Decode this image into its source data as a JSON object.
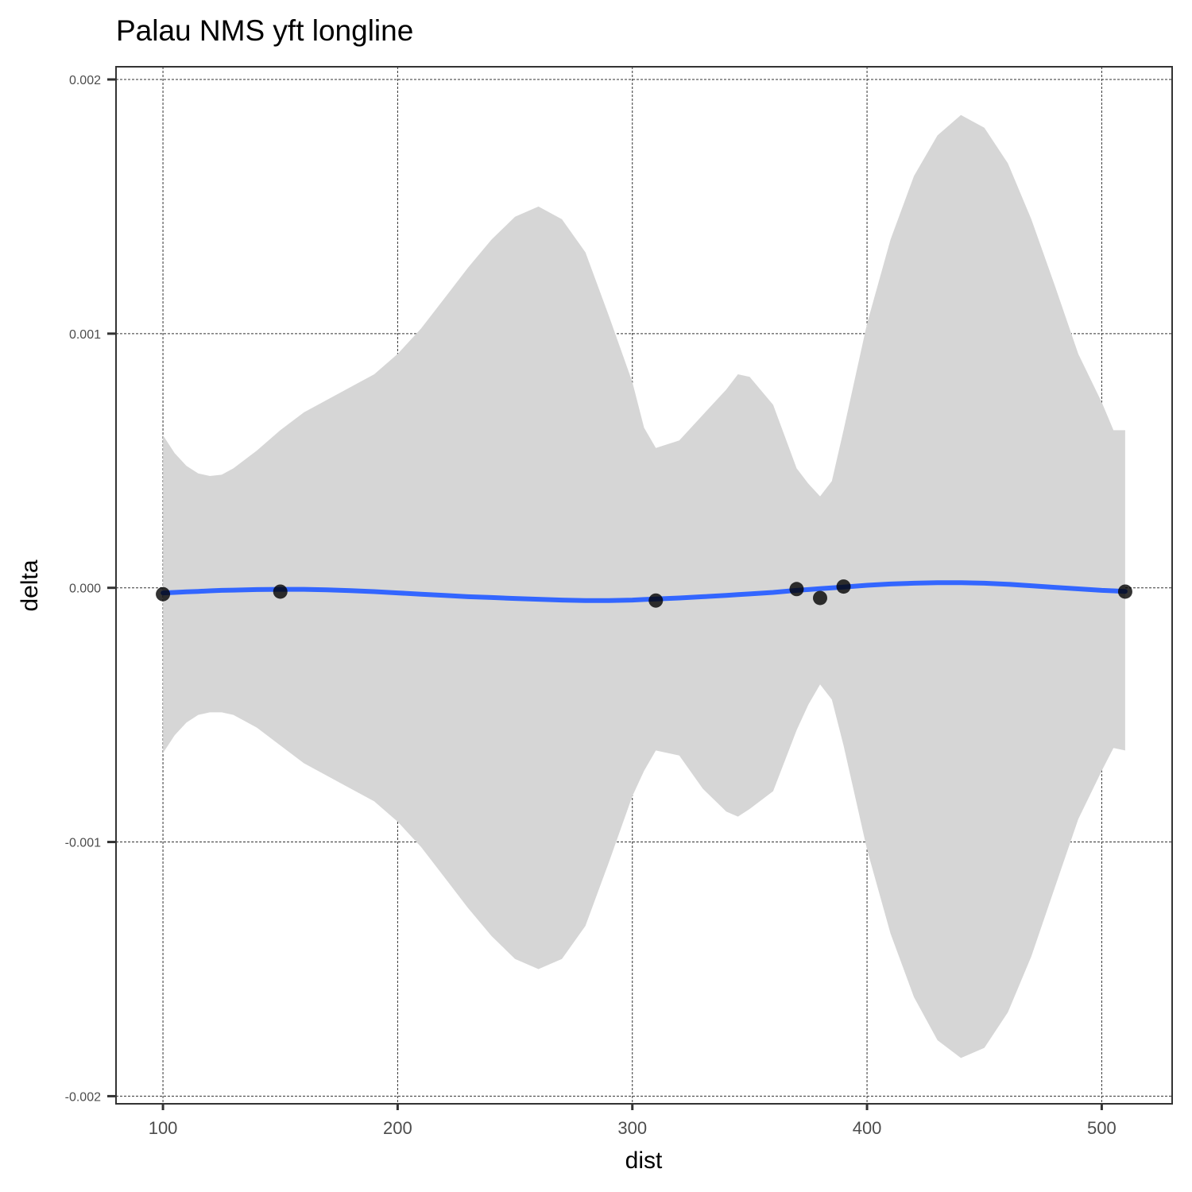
{
  "chart_data": {
    "type": "scatter",
    "title": "Palau NMS yft longline",
    "xlabel": "dist",
    "ylabel": "delta",
    "xlim": [
      80,
      530
    ],
    "ylim": [
      -0.00203,
      0.00205
    ],
    "x_ticks": [
      100,
      200,
      300,
      400,
      500
    ],
    "x_tick_labels": [
      "100",
      "200",
      "300",
      "400",
      "500"
    ],
    "y_ticks": [
      -0.002,
      -0.001,
      0.0,
      0.001,
      0.002
    ],
    "y_tick_labels": [
      "-0.002",
      "-0.001",
      "0.000",
      "0.001",
      "0.002"
    ],
    "grid": true,
    "grid_style": "dashed",
    "colors": {
      "points": "#000000",
      "smooth_line": "#3366ff",
      "ribbon": "#d6d6d6"
    },
    "points": [
      {
        "x": 100,
        "y": -2.5e-05
      },
      {
        "x": 150,
        "y": -1.5e-05
      },
      {
        "x": 310,
        "y": -5e-05
      },
      {
        "x": 370,
        "y": -5e-06
      },
      {
        "x": 380,
        "y": -4e-05
      },
      {
        "x": 390,
        "y": 5e-06
      },
      {
        "x": 510,
        "y": -1.5e-05
      }
    ],
    "smooth": [
      {
        "x": 100,
        "y": -2e-05,
        "lower": -0.00065,
        "upper": 0.0006
      },
      {
        "x": 105,
        "y": -1.8e-05,
        "lower": -0.00058,
        "upper": 0.00053
      },
      {
        "x": 110,
        "y": -1.6e-05,
        "lower": -0.00053,
        "upper": 0.00048
      },
      {
        "x": 115,
        "y": -1.4e-05,
        "lower": -0.0005,
        "upper": 0.00045
      },
      {
        "x": 120,
        "y": -1.2e-05,
        "lower": -0.00049,
        "upper": 0.00044
      },
      {
        "x": 125,
        "y": -1e-05,
        "lower": -0.00049,
        "upper": 0.000445
      },
      {
        "x": 130,
        "y": -9e-06,
        "lower": -0.0005,
        "upper": 0.00047
      },
      {
        "x": 140,
        "y": -7e-06,
        "lower": -0.00055,
        "upper": 0.00054
      },
      {
        "x": 150,
        "y": -6e-06,
        "lower": -0.00062,
        "upper": 0.00062
      },
      {
        "x": 160,
        "y": -6e-06,
        "lower": -0.00069,
        "upper": 0.00069
      },
      {
        "x": 170,
        "y": -8e-06,
        "lower": -0.00074,
        "upper": 0.00074
      },
      {
        "x": 180,
        "y": -1.1e-05,
        "lower": -0.00079,
        "upper": 0.00079
      },
      {
        "x": 190,
        "y": -1.5e-05,
        "lower": -0.00084,
        "upper": 0.00084
      },
      {
        "x": 200,
        "y": -2e-05,
        "lower": -0.00092,
        "upper": 0.00092
      },
      {
        "x": 210,
        "y": -2.5e-05,
        "lower": -0.00102,
        "upper": 0.00102
      },
      {
        "x": 220,
        "y": -3e-05,
        "lower": -0.00114,
        "upper": 0.00114
      },
      {
        "x": 230,
        "y": -3.5e-05,
        "lower": -0.00126,
        "upper": 0.00126
      },
      {
        "x": 240,
        "y": -3.8e-05,
        "lower": -0.00137,
        "upper": 0.00137
      },
      {
        "x": 250,
        "y": -4.2e-05,
        "lower": -0.00146,
        "upper": 0.00146
      },
      {
        "x": 260,
        "y": -4.5e-05,
        "lower": -0.0015,
        "upper": 0.0015
      },
      {
        "x": 270,
        "y": -4.8e-05,
        "lower": -0.00146,
        "upper": 0.00145
      },
      {
        "x": 280,
        "y": -5e-05,
        "lower": -0.00133,
        "upper": 0.00132
      },
      {
        "x": 290,
        "y": -5e-05,
        "lower": -0.00108,
        "upper": 0.00107
      },
      {
        "x": 300,
        "y": -4.8e-05,
        "lower": -0.00082,
        "upper": 0.00081
      },
      {
        "x": 305,
        "y": -4.6e-05,
        "lower": -0.00072,
        "upper": 0.00063
      },
      {
        "x": 310,
        "y": -4.4e-05,
        "lower": -0.00064,
        "upper": 0.00055
      },
      {
        "x": 320,
        "y": -4e-05,
        "lower": -0.00066,
        "upper": 0.00058
      },
      {
        "x": 330,
        "y": -3.5e-05,
        "lower": -0.00079,
        "upper": 0.00068
      },
      {
        "x": 340,
        "y": -3e-05,
        "lower": -0.00088,
        "upper": 0.00078
      },
      {
        "x": 345,
        "y": -2.7e-05,
        "lower": -0.0009,
        "upper": 0.00084
      },
      {
        "x": 350,
        "y": -2.4e-05,
        "lower": -0.00087,
        "upper": 0.00083
      },
      {
        "x": 360,
        "y": -1.8e-05,
        "lower": -0.0008,
        "upper": 0.00072
      },
      {
        "x": 370,
        "y": -1e-05,
        "lower": -0.00056,
        "upper": 0.00047
      },
      {
        "x": 375,
        "y": -7e-06,
        "lower": -0.00046,
        "upper": 0.00041
      },
      {
        "x": 380,
        "y": -3e-06,
        "lower": -0.00038,
        "upper": 0.00036
      },
      {
        "x": 385,
        "y": 0.0,
        "lower": -0.00044,
        "upper": 0.00042
      },
      {
        "x": 390,
        "y": 3e-06,
        "lower": -0.00062,
        "upper": 0.00062
      },
      {
        "x": 400,
        "y": 1e-05,
        "lower": -0.00103,
        "upper": 0.00104
      },
      {
        "x": 410,
        "y": 1.5e-05,
        "lower": -0.00136,
        "upper": 0.00137
      },
      {
        "x": 420,
        "y": 1.8e-05,
        "lower": -0.00161,
        "upper": 0.00162
      },
      {
        "x": 430,
        "y": 2e-05,
        "lower": -0.00178,
        "upper": 0.00178
      },
      {
        "x": 440,
        "y": 2e-05,
        "lower": -0.00185,
        "upper": 0.00186
      },
      {
        "x": 450,
        "y": 1.8e-05,
        "lower": -0.00181,
        "upper": 0.00181
      },
      {
        "x": 460,
        "y": 1.4e-05,
        "lower": -0.00167,
        "upper": 0.00167
      },
      {
        "x": 470,
        "y": 8e-06,
        "lower": -0.00145,
        "upper": 0.00145
      },
      {
        "x": 480,
        "y": 2e-06,
        "lower": -0.00118,
        "upper": 0.00119
      },
      {
        "x": 490,
        "y": -4e-06,
        "lower": -0.00091,
        "upper": 0.00092
      },
      {
        "x": 500,
        "y": -1e-05,
        "lower": -0.00072,
        "upper": 0.00073
      },
      {
        "x": 505,
        "y": -1.2e-05,
        "lower": -0.00063,
        "upper": 0.00062
      },
      {
        "x": 510,
        "y": -1.4e-05,
        "lower": -0.00064,
        "upper": 0.00062
      }
    ]
  }
}
